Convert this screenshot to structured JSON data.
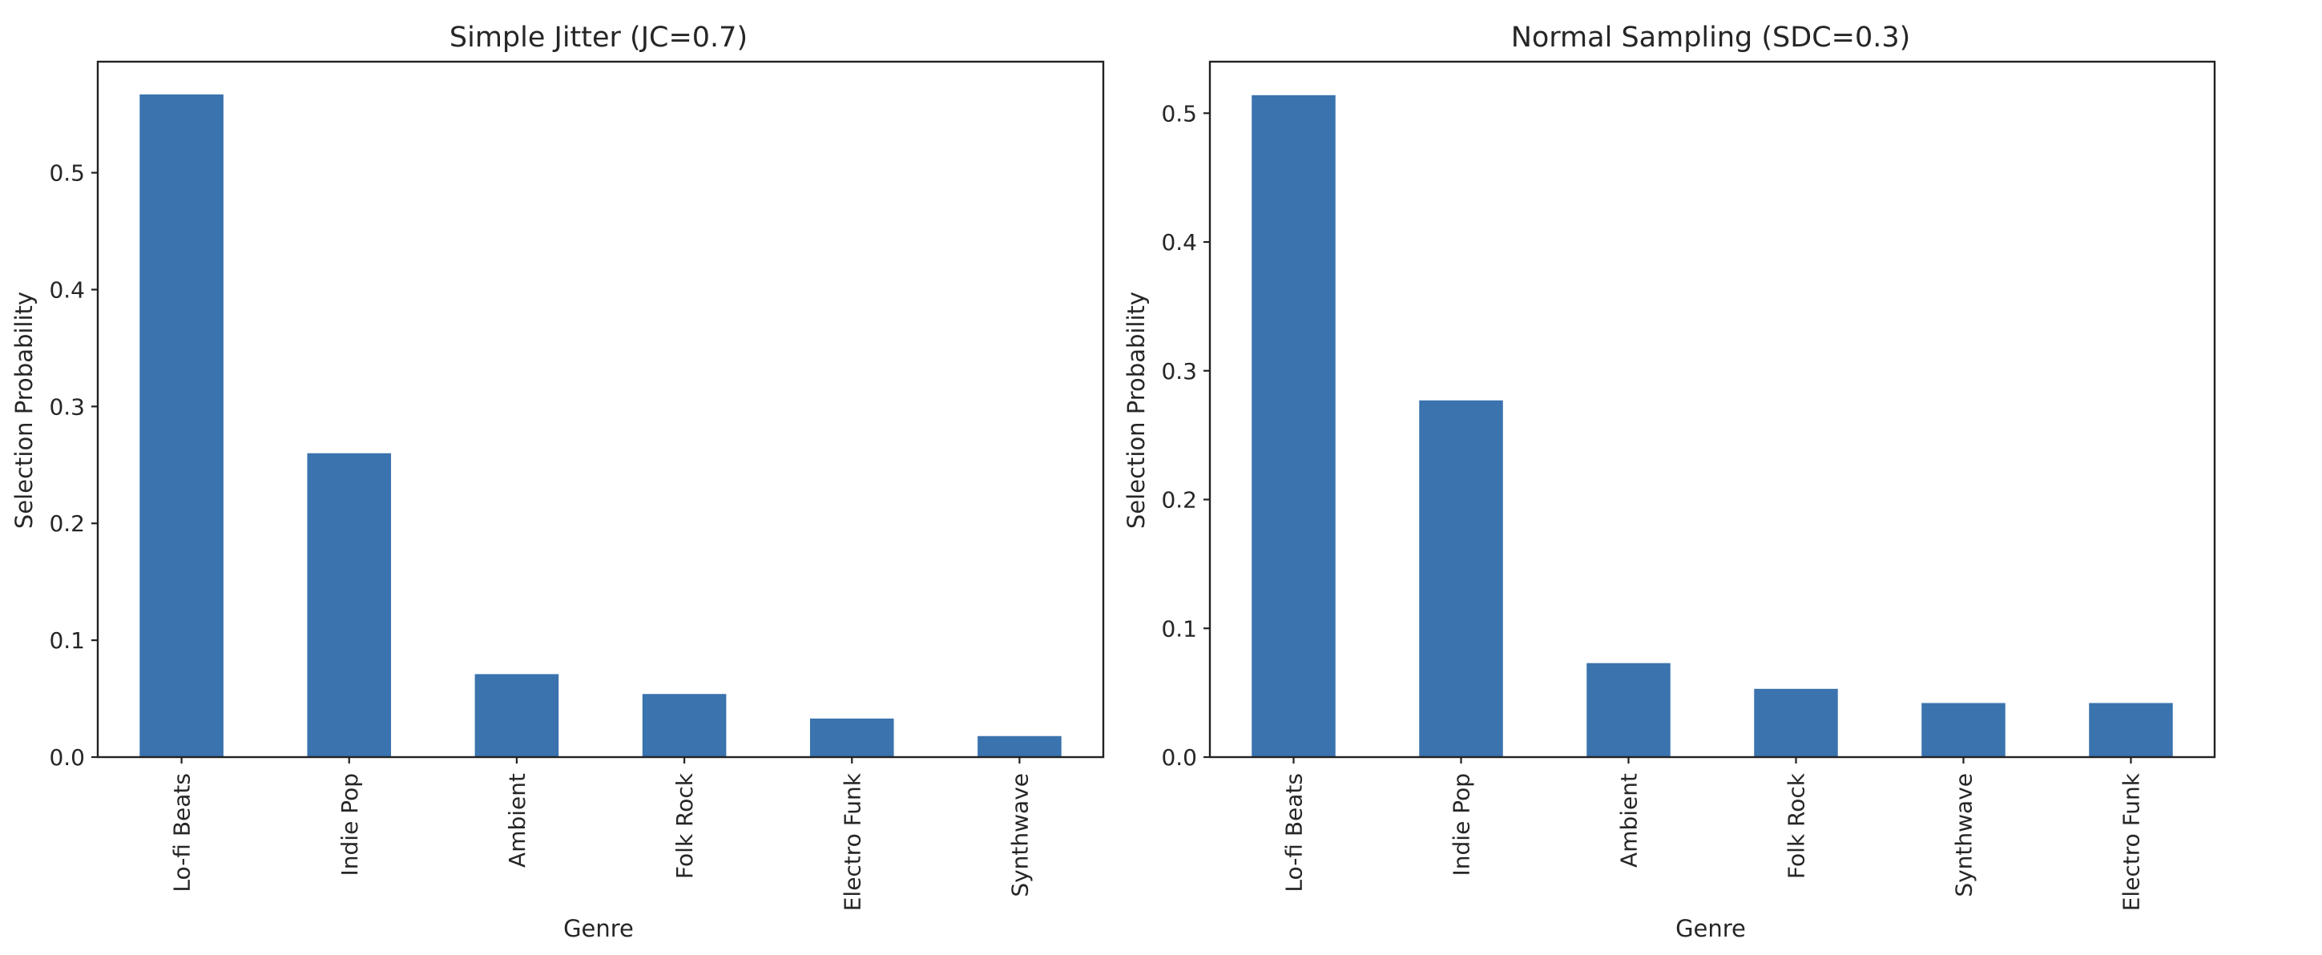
{
  "chart_data": [
    {
      "type": "bar",
      "title": "Simple Jitter (JC=0.7)",
      "xlabel": "Genre",
      "ylabel": "Selection Probability",
      "categories": [
        "Lo-fi Beats",
        "Indie Pop",
        "Ambient",
        "Folk Rock",
        "Electro Funk",
        "Synthwave"
      ],
      "values": [
        0.567,
        0.26,
        0.071,
        0.054,
        0.033,
        0.018
      ],
      "ylim": [
        0,
        0.595
      ],
      "yticks": [
        0.0,
        0.1,
        0.2,
        0.3,
        0.4,
        0.5
      ],
      "ytick_labels": [
        "0.0",
        "0.1",
        "0.2",
        "0.3",
        "0.4",
        "0.5"
      ],
      "color": "#3a73ae",
      "grid": false
    },
    {
      "type": "bar",
      "title": "Normal Sampling (SDC=0.3)",
      "xlabel": "Genre",
      "ylabel": "Selection Probability",
      "categories": [
        "Lo-fi Beats",
        "Indie Pop",
        "Ambient",
        "Folk Rock",
        "Synthwave",
        "Electro Funk"
      ],
      "values": [
        0.514,
        0.277,
        0.073,
        0.053,
        0.042,
        0.042
      ],
      "ylim": [
        0,
        0.54
      ],
      "yticks": [
        0.0,
        0.1,
        0.2,
        0.3,
        0.4,
        0.5
      ],
      "ytick_labels": [
        "0.0",
        "0.1",
        "0.2",
        "0.3",
        "0.4",
        "0.5"
      ],
      "color": "#3a73ae",
      "grid": false
    }
  ]
}
